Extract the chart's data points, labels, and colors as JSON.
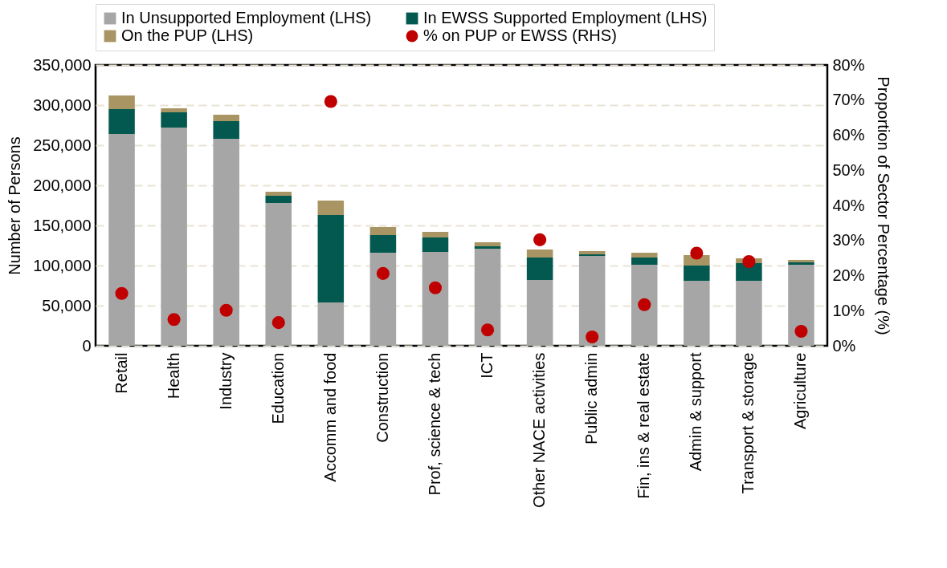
{
  "chart_data": {
    "type": "bar",
    "stacked": true,
    "categories": [
      "Retail",
      "Health",
      "Industry",
      "Education",
      "Accomm and food",
      "Construction",
      "Prof, science & tech",
      "ICT",
      "Other NACE activities",
      "Public admin",
      "Fin, ins & real estate",
      "Admin & support",
      "Transport & storage",
      "Agriculture"
    ],
    "series": [
      {
        "name": "In Unsupported Employment (LHS)",
        "color": "#a6a6a6",
        "values": [
          264000,
          272000,
          258000,
          178000,
          54000,
          116000,
          117000,
          121000,
          82000,
          112000,
          101000,
          81000,
          81000,
          101000
        ]
      },
      {
        "name": "In EWSS Supported Employment (LHS)",
        "color": "#03594f",
        "values": [
          31000,
          19000,
          22000,
          9000,
          109000,
          22000,
          18000,
          3000,
          28000,
          2000,
          9000,
          19000,
          22000,
          3000
        ]
      },
      {
        "name": "On the PUP (LHS)",
        "color": "#a99563",
        "values": [
          17000,
          5000,
          8000,
          5000,
          18000,
          10000,
          7000,
          5000,
          10000,
          4000,
          6000,
          13000,
          6000,
          3000
        ]
      },
      {
        "name": "% on PUP or EWSS (RHS)",
        "color": "#c00000",
        "type": "scatter",
        "axis": "y2",
        "marker": "circle",
        "values": [
          14.9,
          7.5,
          10.1,
          6.6,
          69.6,
          20.6,
          16.5,
          4.5,
          30.2,
          2.5,
          11.7,
          26.4,
          24.0,
          4.1
        ]
      }
    ],
    "ylabel": "Number of Persons",
    "y2label": "Proportion of Sector Percentage (%)",
    "ylim": [
      0,
      350000
    ],
    "yticks": [
      0,
      {
        "value": 50000,
        "label": "50,000"
      },
      {
        "value": 100000,
        "label": "100,000"
      },
      {
        "value": 150000,
        "label": "150,000"
      },
      {
        "value": 200000,
        "label": "200,000"
      },
      {
        "value": 250000,
        "label": "250,000"
      },
      {
        "value": 300000,
        "label": "300,000"
      },
      {
        "value": 350000,
        "label": "350,000"
      }
    ],
    "y2lim": [
      0,
      80
    ],
    "y2ticks": [
      {
        "value": 0,
        "label": "0%"
      },
      {
        "value": 10,
        "label": "10%"
      },
      {
        "value": 20,
        "label": "20%"
      },
      {
        "value": 30,
        "label": "30%"
      },
      {
        "value": 40,
        "label": "40%"
      },
      {
        "value": 50,
        "label": "50%"
      },
      {
        "value": 60,
        "label": "60%"
      },
      {
        "value": 70,
        "label": "70%"
      },
      {
        "value": 80,
        "label": "80%"
      }
    ],
    "grid": "y",
    "legend": "top"
  }
}
